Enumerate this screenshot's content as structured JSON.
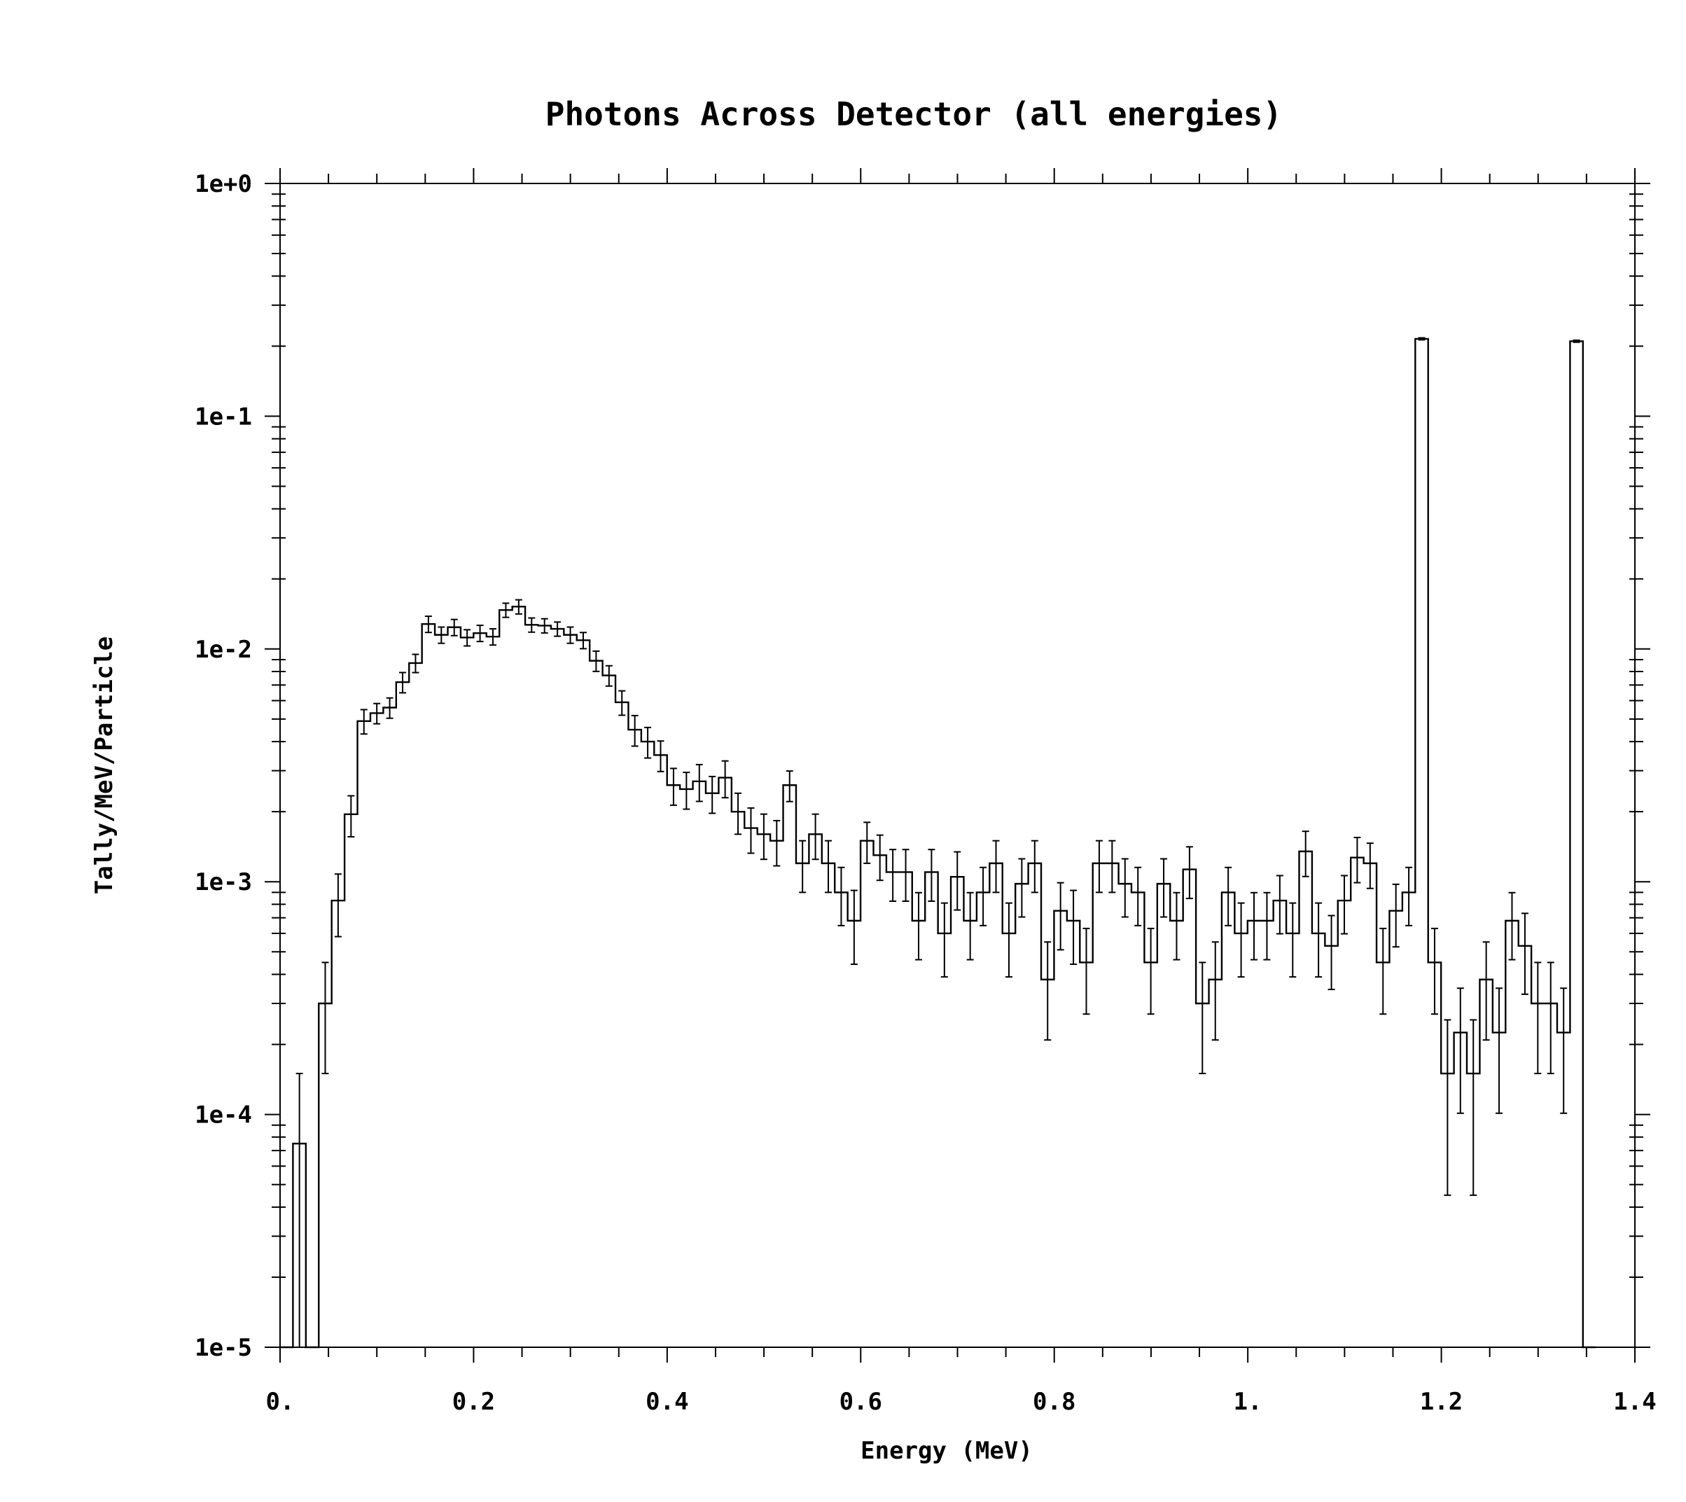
{
  "chart_data": {
    "type": "histogram",
    "title": "Photons Across Detector (all energies)",
    "xlabel": "Energy (MeV)",
    "ylabel": "Tally/MeV/Particle",
    "xlim": [
      0,
      1.4
    ],
    "ylim": [
      1e-05,
      1
    ],
    "yscale": "log",
    "grid": false,
    "x_ticks": [
      0,
      0.2,
      0.4,
      0.6,
      0.8,
      1.0,
      1.2,
      1.4
    ],
    "x_tick_labels": [
      "0.",
      "0.2",
      "0.4",
      "0.6",
      "0.8",
      "1.",
      "1.2",
      "1.4"
    ],
    "y_ticks": [
      1e-05,
      0.0001,
      0.001,
      0.01,
      0.1,
      1
    ],
    "y_tick_labels": [
      "1e-5",
      "1e-4",
      "1e-3",
      "1e-2",
      "1e-1",
      "1e+0"
    ],
    "bin_width": 0.01333,
    "bin_start": 0,
    "values": [
      1e-05,
      7.5e-05,
      1e-05,
      0.0003,
      0.00083,
      0.00195,
      0.0049,
      0.0053,
      0.0056,
      0.0072,
      0.0087,
      0.0128,
      0.0115,
      0.0124,
      0.0112,
      0.0117,
      0.0113,
      0.0147,
      0.0152,
      0.0127,
      0.0126,
      0.0122,
      0.0115,
      0.0109,
      0.0089,
      0.0077,
      0.0059,
      0.0045,
      0.004,
      0.0035,
      0.0026,
      0.0025,
      0.0027,
      0.0024,
      0.0028,
      0.002,
      0.0017,
      0.0016,
      0.0015,
      0.0026,
      0.0012,
      0.0016,
      0.0012,
      0.0009,
      0.00068,
      0.0015,
      0.0013,
      0.0011,
      0.0011,
      0.00068,
      0.0011,
      0.0006,
      0.00105,
      0.00068,
      0.0009,
      0.0012,
      0.0006,
      0.00098,
      0.0012,
      0.00038,
      0.00075,
      0.00068,
      0.00045,
      0.0012,
      0.0012,
      0.00098,
      0.0009,
      0.00045,
      0.00098,
      0.00068,
      0.00113,
      0.0003,
      0.00038,
      0.0009,
      0.0006,
      0.00068,
      0.00068,
      0.00083,
      0.0006,
      0.00135,
      0.0006,
      0.00053,
      0.00083,
      0.00127,
      0.0012,
      0.00045,
      0.00075,
      0.0009,
      0.215,
      0.00045,
      0.00015,
      0.000225,
      0.00015,
      0.00038,
      0.000225,
      0.00068,
      0.00053,
      0.0003,
      0.0003,
      0.000225,
      0.21,
      1e-05
    ],
    "errors_rel": [
      0,
      1.0,
      0,
      0.5,
      0.3,
      0.2,
      0.12,
      0.1,
      0.1,
      0.1,
      0.09,
      0.08,
      0.08,
      0.08,
      0.08,
      0.08,
      0.08,
      0.07,
      0.07,
      0.07,
      0.07,
      0.07,
      0.08,
      0.08,
      0.1,
      0.1,
      0.12,
      0.15,
      0.15,
      0.15,
      0.18,
      0.18,
      0.18,
      0.18,
      0.18,
      0.2,
      0.22,
      0.22,
      0.22,
      0.15,
      0.25,
      0.22,
      0.25,
      0.28,
      0.35,
      0.2,
      0.22,
      0.25,
      0.25,
      0.32,
      0.25,
      0.35,
      0.28,
      0.32,
      0.28,
      0.25,
      0.35,
      0.28,
      0.25,
      0.45,
      0.32,
      0.35,
      0.4,
      0.25,
      0.25,
      0.28,
      0.28,
      0.4,
      0.28,
      0.32,
      0.25,
      0.5,
      0.45,
      0.28,
      0.35,
      0.32,
      0.32,
      0.28,
      0.35,
      0.22,
      0.35,
      0.35,
      0.28,
      0.22,
      0.22,
      0.4,
      0.3,
      0.28,
      0.01,
      0.4,
      0.7,
      0.55,
      0.7,
      0.45,
      0.55,
      0.32,
      0.38,
      0.5,
      0.5,
      0.55,
      0.01,
      0
    ]
  }
}
